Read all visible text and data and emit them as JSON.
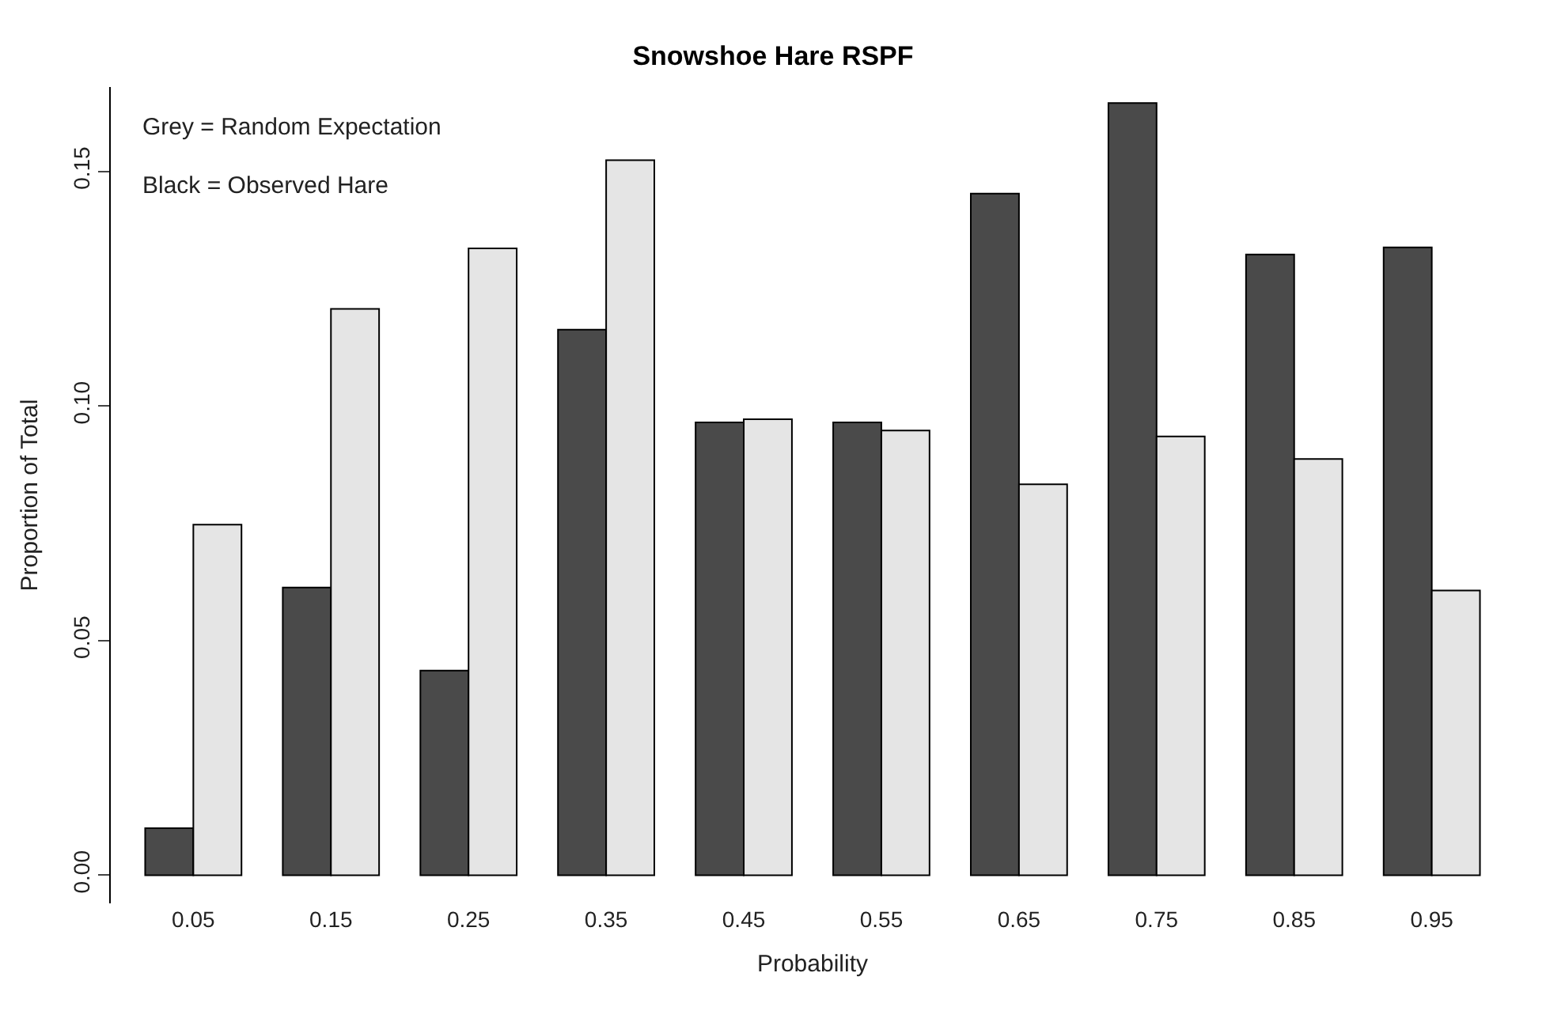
{
  "chart_data": {
    "type": "bar",
    "title": "Snowshoe Hare RSPF",
    "xlabel": "Probability",
    "ylabel": "Proportion of Total",
    "categories": [
      "0.05",
      "0.15",
      "0.25",
      "0.35",
      "0.45",
      "0.55",
      "0.65",
      "0.75",
      "0.85",
      "0.95"
    ],
    "series": [
      {
        "color": "#4a4a4a",
        "values": [
          0.01,
          0.0613,
          0.0436,
          0.1163,
          0.0965,
          0.0965,
          0.1453,
          0.1646,
          0.1323,
          0.1338
        ]
      },
      {
        "color": "#e5e5e5",
        "values": [
          0.0747,
          0.1207,
          0.1336,
          0.1524,
          0.0972,
          0.0948,
          0.0833,
          0.0935,
          0.0887,
          0.0607
        ]
      }
    ],
    "ylim": [
      -0.006,
      0.168
    ],
    "yticks": [
      {
        "value": 0,
        "label": "0.00"
      },
      {
        "value": 0.05,
        "label": "0.05"
      },
      {
        "value": 0.1,
        "label": "0.10"
      },
      {
        "value": 0.15,
        "label": "0.15"
      }
    ],
    "annotations": [
      "Grey = Random Expectation",
      "Black = Observed Hare"
    ]
  }
}
